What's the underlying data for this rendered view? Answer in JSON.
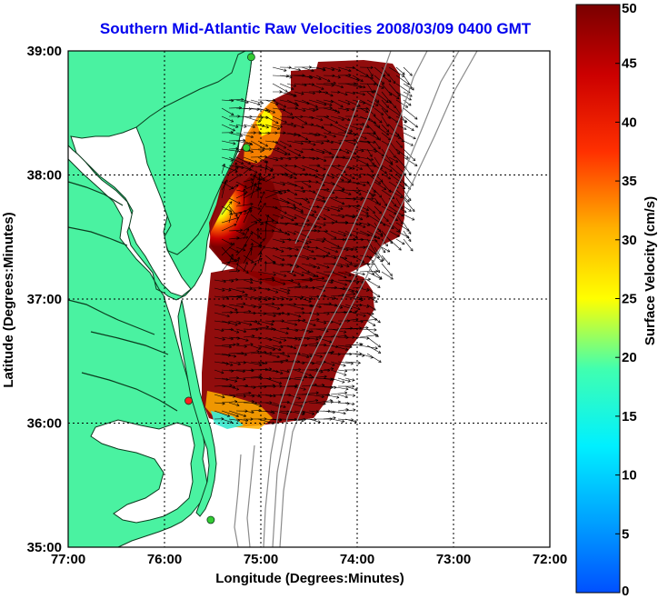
{
  "title": "Southern Mid-Atlantic Raw Velocities 2008/03/09 0400 GMT",
  "map": {
    "xlabel": "Longitude (Degrees:Minutes)",
    "ylabel": "Latitude (Degrees:Minutes)",
    "lon_ticks": [
      "77:00",
      "76:00",
      "75:00",
      "74:00",
      "73:00",
      "72:00"
    ],
    "lat_ticks": [
      "39:00",
      "38:00",
      "37:00",
      "36:00",
      "35:00"
    ],
    "lon_range": [
      -77,
      -72
    ],
    "lat_range": [
      35,
      39
    ],
    "grid": true,
    "colors": {
      "land": "#4af2a1",
      "ocean": "#ffffff",
      "coast": "#000000",
      "bathymetry": "#8a8a8a",
      "grid": "#000000"
    },
    "stations": [
      {
        "lon": -75.1,
        "lat": 38.95,
        "color": "#33cc33"
      },
      {
        "lon": -75.15,
        "lat": 38.22,
        "color": "#33cc33"
      },
      {
        "lon": -75.75,
        "lat": 36.18,
        "color": "#ff2020"
      },
      {
        "lon": -75.52,
        "lat": 35.22,
        "color": "#33cc33"
      }
    ]
  },
  "colorbar": {
    "label": "Surface Velocity (cm/s)",
    "min": 0,
    "max": 50,
    "ticks": [
      "0",
      "5",
      "10",
      "15",
      "20",
      "25",
      "30",
      "35",
      "40",
      "45",
      "50"
    ],
    "colormap": "jet"
  }
}
